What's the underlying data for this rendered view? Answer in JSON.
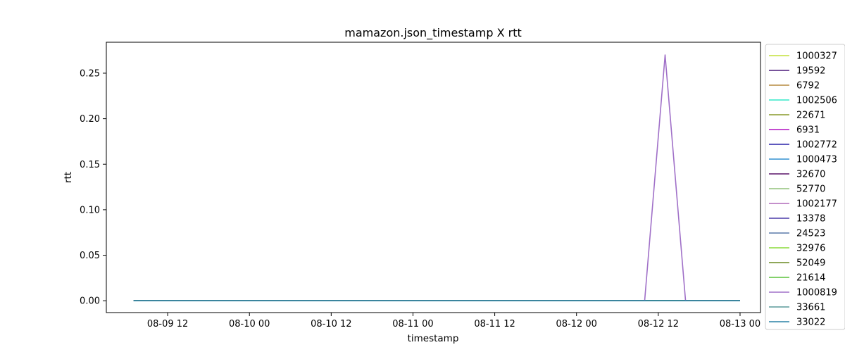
{
  "chart_data": {
    "type": "line",
    "title": "mamazon.json_timestamp X rtt",
    "xlabel": "timestamp",
    "ylabel": "rtt",
    "x_ticks": [
      "08-09 12",
      "08-10 00",
      "08-10 12",
      "08-11 00",
      "08-11 12",
      "08-12 00",
      "08-12 12",
      "08-13 00"
    ],
    "y_ticks": [
      "0.00",
      "0.05",
      "0.10",
      "0.15",
      "0.20",
      "0.25"
    ],
    "xlim": [
      "2024-08-09T03:00",
      "2024-08-13T03:00"
    ],
    "ylim": [
      -0.013,
      0.284
    ],
    "grid": false,
    "legend_position": "outside-right",
    "x_start": "2024-08-09T07:00",
    "x_end": "2024-08-13T00:00",
    "series": [
      {
        "name": "1000327",
        "color": "#c3e03a",
        "values": [
          0,
          0
        ]
      },
      {
        "name": "19592",
        "color": "#4b1a7a",
        "values": [
          0,
          0
        ]
      },
      {
        "name": "6792",
        "color": "#b58a3f",
        "values": [
          0,
          0
        ]
      },
      {
        "name": "1002506",
        "color": "#33e8c8",
        "values": [
          0,
          0
        ]
      },
      {
        "name": "22671",
        "color": "#889a2a",
        "values": [
          0,
          0
        ]
      },
      {
        "name": "6931",
        "color": "#b011c0",
        "values": [
          0,
          0
        ]
      },
      {
        "name": "1002772",
        "color": "#2a22a8",
        "values": [
          0,
          0
        ]
      },
      {
        "name": "1000473",
        "color": "#3290d0",
        "values": [
          0,
          0
        ]
      },
      {
        "name": "32670",
        "color": "#5a1468",
        "values": [
          0,
          0
        ]
      },
      {
        "name": "52770",
        "color": "#92c27a",
        "values": [
          0,
          0
        ]
      },
      {
        "name": "1002177",
        "color": "#b06aba",
        "values": [
          0,
          0
        ]
      },
      {
        "name": "13378",
        "color": "#4a3aa8",
        "values": [
          0,
          0
        ]
      },
      {
        "name": "24523",
        "color": "#5a7aaa",
        "values": [
          0,
          0
        ]
      },
      {
        "name": "32976",
        "color": "#8adc3a",
        "values": [
          0,
          0
        ]
      },
      {
        "name": "52049",
        "color": "#6a8a22",
        "values": [
          0,
          0
        ]
      },
      {
        "name": "21614",
        "color": "#5ac23a",
        "values": [
          0,
          0
        ]
      },
      {
        "name": "1000819",
        "color": "#a070c8",
        "values": [
          {
            "x": "2024-08-09T07:00",
            "y": 0
          },
          {
            "x": "2024-08-12T10:00",
            "y": 0
          },
          {
            "x": "2024-08-12T13:00",
            "y": 0.27
          },
          {
            "x": "2024-08-12T16:00",
            "y": 0
          },
          {
            "x": "2024-08-13T00:00",
            "y": 0
          }
        ]
      },
      {
        "name": "33661",
        "color": "#5a9a9a",
        "values": [
          0,
          0
        ]
      },
      {
        "name": "33022",
        "color": "#2a82a6",
        "values": [
          0,
          0
        ]
      }
    ]
  }
}
